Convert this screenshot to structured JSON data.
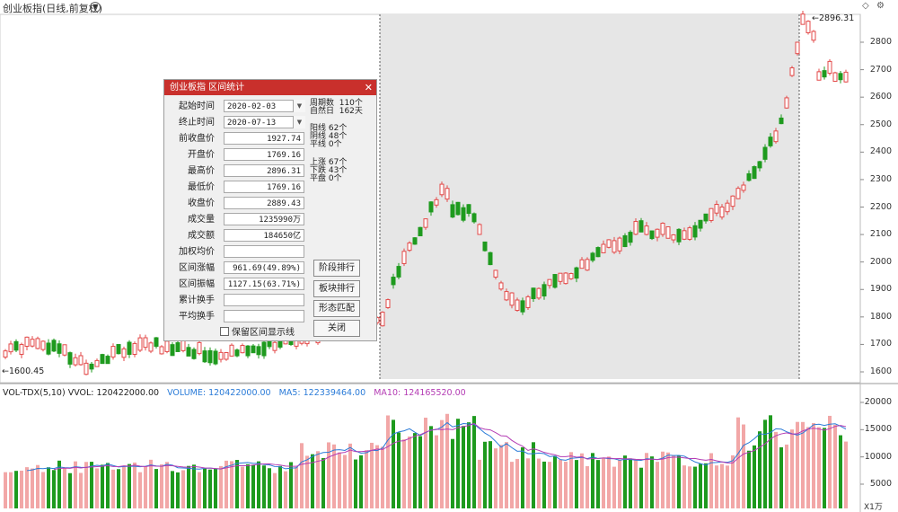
{
  "header": {
    "title": "创业板指(日线,前复权)"
  },
  "chart": {
    "price_ticks": [
      "2800",
      "2700",
      "2600",
      "2500",
      "2400",
      "2300",
      "2200",
      "2100",
      "2000",
      "1900",
      "1800",
      "1700",
      "1600"
    ],
    "volume_ticks": [
      "20000",
      "15000",
      "10000",
      "5000"
    ],
    "volume_unit": "X1万",
    "high_label": "2896.31",
    "low_label": "1600.45",
    "colors": {
      "up": "#e34948",
      "down": "#1e9a1e",
      "vol_up": "#f2a7a7",
      "shade": "#e6e6e6",
      "ma5": "#2a7bd8",
      "ma10": "#b43cb4"
    }
  },
  "volume_legend": {
    "name": "VOL-TDX(5,10) VVOL: 120422000.00",
    "volume": "VOLUME: 120422000.00",
    "ma5": "MA5: 122339464.00",
    "ma10": "MA10: 124165520.00"
  },
  "dialog": {
    "title": "创业板指 区间统计",
    "start_label": "起始时间",
    "start_value": "2020-02-03",
    "end_label": "终止时间",
    "end_value": "2020-07-13",
    "prev_close_label": "前收盘价",
    "prev_close": "1927.74",
    "open_label": "开盘价",
    "open": "1769.16",
    "high_label": "最高价",
    "high": "2896.31",
    "low_label": "最低价",
    "low": "1769.16",
    "close_label": "收盘价",
    "close": "2889.43",
    "vol_label": "成交量",
    "vol": "1235990万",
    "amount_label": "成交额",
    "amount": "184650亿",
    "wavg_label": "加权均价",
    "wavg": "",
    "change_label": "区间涨幅",
    "change": "961.69(49.89%)",
    "amp_label": "区间振幅",
    "amp": "1127.15(63.71%)",
    "turnover_label": "累计换手",
    "turnover": "",
    "avg_turnover_label": "平均换手",
    "avg_turnover": "",
    "stats": {
      "periods": "周期数  110个",
      "days": "自然日  162天",
      "yang": "阳线 62个",
      "yin": "阴线 48个",
      "flat": "平线 0个",
      "up": "上涨 67个",
      "down": "下跌 43个",
      "even": "平盘 0个"
    },
    "buttons": {
      "stage": "阶段排行",
      "sector": "板块排行",
      "pattern": "形态匹配",
      "close": "关闭"
    },
    "keep_label": "保留区间显示线"
  }
}
